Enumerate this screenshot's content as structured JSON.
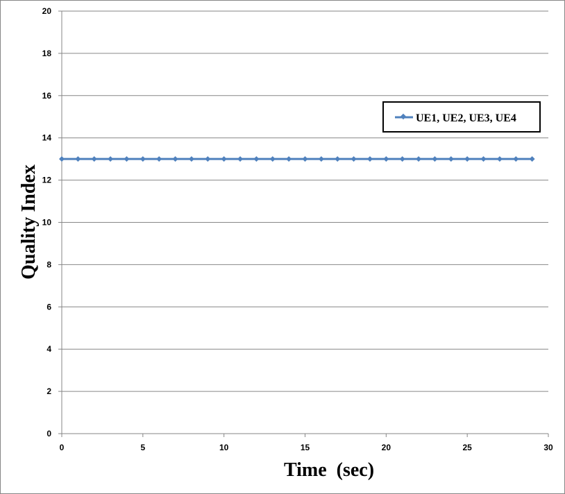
{
  "chart_data": {
    "type": "line",
    "title": "",
    "xlabel": "Time  (sec)",
    "ylabel": "Quality Index",
    "xlim": [
      0,
      30
    ],
    "ylim": [
      0,
      20
    ],
    "x_ticks": [
      0,
      5,
      10,
      15,
      20,
      25,
      30
    ],
    "y_ticks": [
      0,
      2,
      4,
      6,
      8,
      10,
      12,
      14,
      16,
      18,
      20
    ],
    "grid": "horizontal",
    "legend_position": "right",
    "series": [
      {
        "name": "UE1, UE2, UE3, UE4",
        "color": "#4F81BD",
        "marker": "diamond",
        "x": [
          0,
          1,
          2,
          3,
          4,
          5,
          6,
          7,
          8,
          9,
          10,
          11,
          12,
          13,
          14,
          15,
          16,
          17,
          18,
          19,
          20,
          21,
          22,
          23,
          24,
          25,
          26,
          27,
          28,
          29
        ],
        "values": [
          13,
          13,
          13,
          13,
          13,
          13,
          13,
          13,
          13,
          13,
          13,
          13,
          13,
          13,
          13,
          13,
          13,
          13,
          13,
          13,
          13,
          13,
          13,
          13,
          13,
          13,
          13,
          13,
          13,
          13
        ]
      }
    ]
  }
}
